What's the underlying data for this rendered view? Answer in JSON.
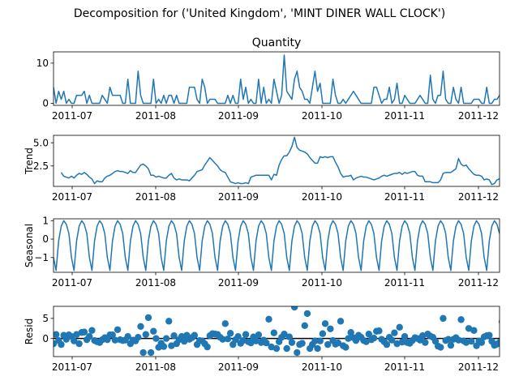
{
  "chart_data": {
    "type": "line",
    "suptitle": "Decomposition for ('United Kingdom', 'MINT DINER WALL CLOCK')",
    "date_ticks": [
      "2011-07",
      "2011-08",
      "2011-09",
      "2011-10",
      "2011-11",
      "2011-12"
    ],
    "colors": {
      "line": "#1f77b4",
      "marker": "#1f77b4",
      "zero_line": "#000000",
      "axis": "#000000"
    },
    "panels": [
      {
        "id": "observed",
        "title": "Quantity",
        "ylabel": "",
        "style": "line",
        "ylim": [
          -0.5,
          12.8
        ],
        "yticks": [
          0,
          10
        ],
        "values": [
          4,
          0,
          3,
          1,
          3,
          0,
          1,
          0,
          0,
          2,
          2,
          2,
          3,
          0,
          2,
          0,
          0,
          0,
          0,
          2,
          1,
          0,
          4,
          2,
          2,
          2,
          2,
          0,
          0,
          6,
          0,
          0,
          0,
          8,
          2,
          0,
          0,
          0,
          0,
          6,
          0,
          1,
          0,
          2,
          0,
          2,
          2,
          0,
          2,
          0,
          0,
          0,
          0,
          4,
          4,
          4,
          1,
          0,
          6,
          4,
          0,
          1,
          1,
          1,
          0,
          0,
          0,
          0,
          2,
          0,
          2,
          0,
          0,
          6,
          1,
          4,
          0,
          1,
          0,
          0,
          6,
          0,
          4,
          0,
          1,
          0,
          6,
          3,
          0,
          2,
          12,
          3,
          2,
          1,
          6,
          8,
          4,
          3,
          1,
          1,
          0,
          4,
          8,
          3,
          5,
          0,
          0,
          0,
          0,
          6,
          2,
          0,
          0,
          1,
          0,
          1,
          2,
          3,
          2,
          1,
          0,
          0,
          0,
          0,
          0,
          4,
          4,
          2,
          0,
          1,
          1,
          4,
          0,
          1,
          5,
          0,
          0,
          2,
          1,
          0,
          0,
          0,
          1,
          2,
          1,
          0,
          0,
          7,
          1,
          0,
          2,
          2,
          8,
          1,
          0,
          0,
          4,
          1,
          0,
          4,
          0,
          0,
          0,
          0,
          1,
          1,
          1,
          0,
          0,
          4,
          0,
          0,
          1,
          1,
          2
        ]
      },
      {
        "id": "trend",
        "title": "",
        "ylabel": "Trend",
        "style": "line",
        "ylim": [
          0.3,
          5.8
        ],
        "yticks": [
          2.5,
          5.0
        ],
        "tick_labels": [
          "2.5",
          "5.0"
        ],
        "values": [
          null,
          null,
          null,
          1.8,
          1.4,
          1.3,
          1.2,
          1.4,
          1.2,
          1.5,
          1.7,
          1.6,
          1.8,
          1.6,
          1.3,
          1.1,
          0.6,
          0.9,
          0.8,
          0.8,
          1.2,
          1.4,
          1.5,
          1.7,
          1.9,
          2.0,
          1.9,
          1.9,
          1.8,
          1.7,
          2.0,
          1.8,
          1.8,
          2.2,
          2.6,
          2.7,
          2.5,
          2.2,
          1.5,
          1.5,
          1.3,
          1.4,
          1.3,
          1.2,
          1.2,
          1.5,
          1.7,
          1.2,
          1.0,
          1.1,
          1.0,
          1.0,
          1.0,
          0.9,
          1.2,
          1.5,
          1.9,
          2.0,
          2.1,
          2.6,
          3.0,
          3.4,
          3.1,
          2.8,
          2.5,
          2.1,
          1.9,
          1.8,
          1.3,
          0.8,
          0.7,
          0.6,
          0.7,
          0.6,
          0.6,
          0.7,
          0.6,
          1.3,
          1.4,
          1.5,
          1.5,
          1.5,
          1.5,
          1.5,
          1.5,
          1.0,
          1.6,
          1.5,
          2.6,
          3.2,
          3.6,
          3.6,
          4.0,
          4.6,
          5.6,
          4.5,
          4.2,
          4.1,
          4.0,
          3.8,
          3.4,
          3.1,
          2.8,
          2.8,
          3.5,
          3.4,
          3.5,
          3.4,
          3.5,
          3.5,
          2.9,
          2.4,
          1.7,
          1.3,
          1.4,
          1.4,
          1.5,
          1.0,
          1.2,
          1.3,
          1.4,
          1.3,
          1.3,
          1.2,
          1.1,
          1.0,
          1.1,
          1.2,
          1.4,
          1.5,
          1.4,
          1.5,
          1.6,
          1.7,
          1.7,
          1.8,
          1.6,
          1.8,
          1.7,
          1.8,
          1.9,
          1.9,
          1.5,
          1.4,
          1.4,
          0.8,
          0.8,
          0.8,
          0.7,
          0.7,
          0.7,
          1.0,
          1.7,
          1.8,
          1.8,
          1.8,
          2.0,
          2.2,
          3.3,
          2.7,
          2.5,
          2.6,
          2.2,
          1.9,
          1.6,
          1.5,
          1.5,
          1.4,
          1.0,
          1.1,
          1.0,
          0.5,
          0.6,
          1.0,
          1.1,
          1.2,
          1.1,
          1.1,
          1.4,
          null,
          null,
          null
        ]
      },
      {
        "id": "seasonal",
        "title": "",
        "ylabel": "Seasonal",
        "style": "line",
        "ylim": [
          -1.8,
          1.1
        ],
        "yticks": [
          -1,
          0,
          1
        ],
        "period": 7,
        "cycle": [
          -1.0,
          -1.7,
          -0.1,
          0.7,
          1.0,
          0.8,
          0.3
        ],
        "n_points": 175
      },
      {
        "id": "resid",
        "title": "",
        "ylabel": "Resid",
        "style": "scatter",
        "ylim": [
          -4.5,
          8
        ],
        "yticks": [
          0,
          5
        ],
        "zero_line": true,
        "values": [
          -1.3,
          1.0,
          -0.5,
          -1.5,
          0.8,
          -0.2,
          0.9,
          0.5,
          -0.6,
          1.0,
          -1.3,
          1.5,
          1.6,
          -0.3,
          0.5,
          2.0,
          -0.5,
          -0.8,
          -1.0,
          -0.3,
          0.2,
          -0.3,
          0.9,
          0.9,
          -0.4,
          2.2,
          -0.3,
          -0.5,
          -0.4,
          0.5,
          -1.3,
          -0.4,
          -0.6,
          0.3,
          3.0,
          -3.5,
          1.0,
          5.2,
          -3.5,
          1.8,
          0.0,
          -2.2,
          -1.2,
          -2.0,
          0.0,
          4.3,
          -1.8,
          0.7,
          -1.3,
          -0.3,
          0.5,
          -0.7,
          0.8,
          -0.2,
          0.2,
          0.8,
          -1.5,
          -0.5,
          -0.6,
          -1.3,
          -2.1,
          0.7,
          1.2,
          1.1,
          1.0,
          0.3,
          -0.2,
          3.7,
          -0.1,
          1.3,
          -1.5,
          -0.3,
          0.5,
          -1.2,
          -0.5,
          1.0,
          -0.8,
          -1.1,
          0.4,
          -0.6,
          0.9,
          -1.0,
          -0.4,
          -1.1,
          4.8,
          -2.1,
          1.4,
          -2.5,
          -0.8,
          0.3,
          1.1,
          -2.5,
          0.4,
          -1.0,
          7.8,
          -3.5,
          -1.5,
          -1.2,
          3.2,
          6.2,
          -2.5,
          -1.5,
          -0.6,
          -2.5,
          -0.6,
          1.2,
          3.7,
          -1.5,
          2.4,
          -0.5,
          -1.4,
          -1.1,
          4.3,
          -1.8,
          -2.2,
          0.0,
          1.5,
          0.2,
          -0.5,
          0.8,
          0.3,
          -0.5,
          -0.8,
          1.1,
          -0.3,
          0.1,
          1.8,
          1.9,
          -0.2,
          -0.8,
          -1.5,
          0.3,
          -0.4,
          1.4,
          -1.3,
          2.8,
          -0.9,
          0.5,
          -1.0,
          -1.2,
          -0.5,
          0.2,
          0.0,
          -0.4,
          0.7,
          -1.0,
          1.1,
          0.6,
          0.3,
          -0.7,
          -1.9,
          -2.2,
          5.0,
          -0.5,
          -0.2,
          -1.7,
          -0.2,
          0.2,
          -0.4,
          4.7,
          -0.6,
          -1.0,
          2.5,
          -0.7,
          2.0,
          -1.8,
          -0.6,
          -1.0,
          0.4,
          0.7,
          0.8,
          -0.7,
          -1.7,
          -1.4,
          -1.0,
          4.2,
          1.1,
          -1.2,
          -1.6
        ]
      }
    ]
  }
}
